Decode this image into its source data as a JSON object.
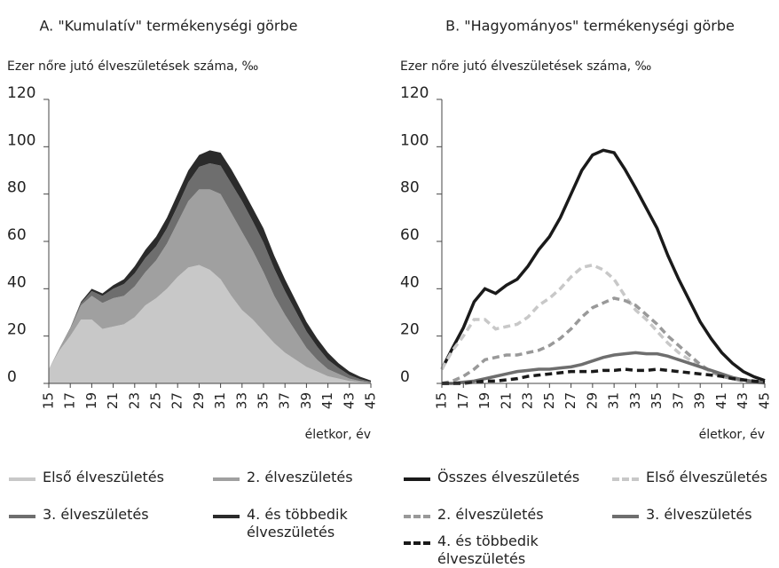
{
  "chart_data": [
    {
      "type": "stacked-area",
      "title": "A. \"Kumulatív\" termékenységi görbe",
      "y_label": "Ezer nőre jutó élveszületések száma, ‰",
      "x_label": "életkor, év",
      "x": [
        15,
        16,
        17,
        18,
        19,
        20,
        21,
        22,
        23,
        24,
        25,
        26,
        27,
        28,
        29,
        30,
        31,
        32,
        33,
        34,
        35,
        36,
        37,
        38,
        39,
        40,
        41,
        42,
        43,
        44,
        45
      ],
      "xlim": [
        15,
        45
      ],
      "xticks": [
        15,
        17,
        19,
        21,
        23,
        25,
        27,
        29,
        31,
        33,
        35,
        37,
        39,
        41,
        43,
        45
      ],
      "ylim": [
        0,
        120
      ],
      "yticks": [
        0,
        20,
        40,
        60,
        80,
        100,
        120
      ],
      "series": [
        {
          "name": "Első élveszületés",
          "color": "#c8c8c8",
          "values": [
            6,
            14,
            20,
            27,
            27,
            23,
            24,
            25,
            28,
            33,
            36,
            40,
            45,
            49,
            50,
            48,
            44,
            37,
            31,
            27,
            22,
            17,
            13,
            10,
            7,
            5,
            3,
            2,
            1,
            0.5,
            0.2
          ]
        },
        {
          "name": "2. élveszületés",
          "color": "#a0a0a0",
          "values": [
            0,
            1,
            3,
            6,
            10,
            11,
            12,
            12,
            13,
            14,
            16,
            19,
            23,
            28,
            32,
            34,
            36,
            35,
            33,
            29,
            25,
            20,
            16,
            12,
            8,
            5,
            3,
            2,
            1,
            0.5,
            0.2
          ]
        },
        {
          "name": "3. élveszületés",
          "color": "#6e6e6e",
          "values": [
            0,
            0,
            0.5,
            1,
            2,
            3,
            4,
            5,
            5.5,
            6,
            6,
            6.5,
            7,
            8,
            9.5,
            11,
            12,
            12.5,
            13,
            12.5,
            12.5,
            11.5,
            10,
            8.5,
            7,
            5.5,
            4,
            2.5,
            1.5,
            0.8,
            0.3
          ]
        },
        {
          "name": "4. és többedik élveszületés",
          "color": "#2b2b2b",
          "values": [
            0,
            0,
            0,
            0.5,
            1,
            1,
            1.5,
            2,
            3,
            3.5,
            4,
            4.5,
            5,
            5,
            5,
            5.5,
            5.5,
            6,
            5.5,
            5.5,
            6,
            5.5,
            5,
            4.5,
            4,
            3.5,
            3,
            2,
            1.5,
            1,
            0.5
          ]
        }
      ]
    },
    {
      "type": "line",
      "title": "B. \"Hagyományos\" termékenységi görbe",
      "y_label": "Ezer nőre jutó élveszületések száma, ‰",
      "x_label": "életkor, év",
      "x": [
        15,
        16,
        17,
        18,
        19,
        20,
        21,
        22,
        23,
        24,
        25,
        26,
        27,
        28,
        29,
        30,
        31,
        32,
        33,
        34,
        35,
        36,
        37,
        38,
        39,
        40,
        41,
        42,
        43,
        44,
        45
      ],
      "xlim": [
        15,
        45
      ],
      "xticks": [
        15,
        17,
        19,
        21,
        23,
        25,
        27,
        29,
        31,
        33,
        35,
        37,
        39,
        41,
        43,
        45
      ],
      "ylim": [
        0,
        120
      ],
      "yticks": [
        0,
        20,
        40,
        60,
        80,
        100,
        120
      ],
      "series": [
        {
          "name": "Összes élveszületés",
          "color": "#1a1a1a",
          "dashed": false,
          "values": [
            6,
            15,
            23.5,
            34.5,
            40,
            38,
            41.5,
            44,
            49.5,
            56.5,
            62,
            70,
            80,
            90,
            96.5,
            98.5,
            97.5,
            90.5,
            82.5,
            74,
            65.5,
            54,
            44,
            35,
            26,
            19,
            13,
            8.5,
            5,
            2.8,
            1.2
          ]
        },
        {
          "name": "Első élveszületés",
          "color": "#c8c8c8",
          "dashed": true,
          "values": [
            6,
            14,
            20,
            27,
            27,
            23,
            24,
            25,
            28,
            33,
            36,
            40,
            45,
            49,
            50,
            48,
            44,
            37,
            31,
            27,
            22,
            17,
            13,
            10,
            7,
            5,
            3,
            2,
            1,
            0.5,
            0.2
          ]
        },
        {
          "name": "2. élveszületés",
          "color": "#999999",
          "dashed": true,
          "values": [
            0,
            1,
            3,
            6,
            10,
            11,
            12,
            12,
            13,
            14,
            16,
            19,
            23,
            28,
            32,
            34,
            36,
            35,
            33,
            29,
            25,
            20,
            16,
            12,
            8,
            5,
            3,
            2,
            1,
            0.5,
            0.2
          ]
        },
        {
          "name": "3. élveszületés",
          "color": "#6e6e6e",
          "dashed": false,
          "values": [
            0,
            0,
            0.5,
            1,
            2,
            3,
            4,
            5,
            5.5,
            6,
            6,
            6.5,
            7,
            8,
            9.5,
            11,
            12,
            12.5,
            13,
            12.5,
            12.5,
            11.5,
            10,
            8.5,
            7,
            5.5,
            4,
            2.5,
            1.5,
            0.8,
            0.3
          ]
        },
        {
          "name": "4. és többedik élveszületés",
          "color": "#1a1a1a",
          "dashed": true,
          "values": [
            0,
            0,
            0,
            0.5,
            1,
            1,
            1.5,
            2,
            3,
            3.5,
            4,
            4.5,
            5,
            5,
            5,
            5.5,
            5.5,
            6,
            5.5,
            5.5,
            6,
            5.5,
            5,
            4.5,
            4,
            3.5,
            3,
            2,
            1.5,
            1,
            0.5
          ]
        }
      ]
    }
  ]
}
